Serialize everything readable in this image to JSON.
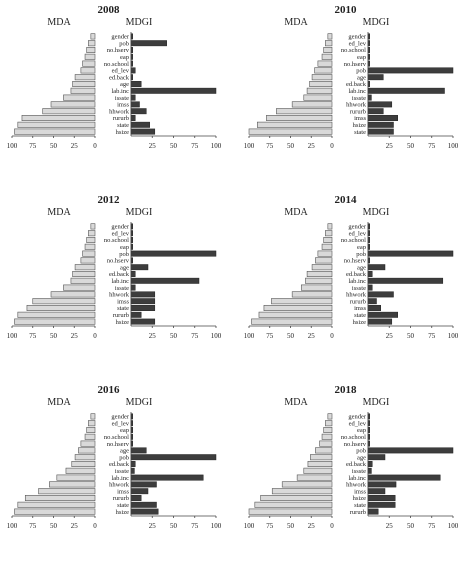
{
  "chart_data": [
    {
      "type": "bar",
      "title": "2008",
      "left_label": "MDA",
      "right_label": "MDGI",
      "categories": [
        "gender",
        "pob",
        "no.hserv",
        "eap",
        "no.school",
        "ed_lev",
        "ed.back",
        "age",
        "lab.inc",
        "issste",
        "imss",
        "hhwork",
        "rururb",
        "state",
        "hsize"
      ],
      "series": [
        {
          "name": "MDA",
          "values": [
            5,
            8,
            10,
            12,
            15,
            17,
            24,
            27,
            29,
            38,
            53,
            63,
            88,
            93,
            97
          ]
        },
        {
          "name": "MDGI",
          "values": [
            2,
            42,
            2,
            2,
            2,
            5,
            2,
            12,
            100,
            5,
            10,
            18,
            5,
            22,
            28
          ]
        }
      ],
      "xlim": [
        0,
        100
      ],
      "ticks": [
        100,
        75,
        50,
        25,
        0,
        25,
        50,
        75,
        100
      ]
    },
    {
      "type": "bar",
      "title": "2010",
      "left_label": "MDA",
      "right_label": "MDGI",
      "categories": [
        "gender",
        "ed_lev",
        "no.school",
        "eap",
        "no.hserv",
        "pob",
        "age",
        "ed.back",
        "lab.inc",
        "issste",
        "hhwork",
        "rururb",
        "imss",
        "hsize",
        "state"
      ],
      "series": [
        {
          "name": "MDA",
          "values": [
            5,
            8,
            10,
            12,
            17,
            21,
            24,
            27,
            30,
            34,
            48,
            67,
            79,
            90,
            100
          ]
        },
        {
          "name": "MDGI",
          "values": [
            2,
            2,
            2,
            2,
            2,
            100,
            18,
            2,
            90,
            4,
            28,
            18,
            35,
            30,
            30
          ]
        }
      ],
      "xlim": [
        0,
        100
      ],
      "ticks": [
        100,
        75,
        50,
        25,
        0,
        25,
        50,
        75,
        100
      ]
    },
    {
      "type": "bar",
      "title": "2012",
      "left_label": "MDA",
      "right_label": "MDGI",
      "categories": [
        "gender",
        "ed_lev",
        "no.school",
        "eap",
        "pob",
        "no.hserv",
        "age",
        "ed.back",
        "lab.inc",
        "issste",
        "hhwork",
        "imss",
        "state",
        "rururb",
        "hsize"
      ],
      "series": [
        {
          "name": "MDA",
          "values": [
            5,
            8,
            10,
            12,
            15,
            17,
            24,
            27,
            29,
            38,
            53,
            75,
            82,
            93,
            97
          ]
        },
        {
          "name": "MDGI",
          "values": [
            2,
            2,
            2,
            2,
            100,
            2,
            20,
            5,
            80,
            5,
            28,
            28,
            28,
            12,
            28
          ]
        }
      ],
      "xlim": [
        0,
        100
      ],
      "ticks": [
        100,
        75,
        50,
        25,
        0,
        25,
        50,
        75,
        100
      ]
    },
    {
      "type": "bar",
      "title": "2014",
      "left_label": "MDA",
      "right_label": "MDGI",
      "categories": [
        "gender",
        "ed_lev",
        "no.school",
        "eap",
        "pob",
        "no.hserv",
        "age",
        "ed.back",
        "lab.inc",
        "issste",
        "hhwork",
        "rururb",
        "imss",
        "state",
        "hsize"
      ],
      "series": [
        {
          "name": "MDA",
          "values": [
            5,
            8,
            10,
            12,
            17,
            20,
            24,
            30,
            32,
            37,
            48,
            73,
            82,
            88,
            97
          ]
        },
        {
          "name": "MDGI",
          "values": [
            2,
            2,
            2,
            2,
            100,
            2,
            20,
            5,
            88,
            5,
            30,
            10,
            15,
            35,
            28
          ]
        }
      ],
      "xlim": [
        0,
        100
      ],
      "ticks": [
        100,
        75,
        50,
        25,
        0,
        25,
        50,
        75,
        100
      ]
    },
    {
      "type": "bar",
      "title": "2016",
      "left_label": "MDA",
      "right_label": "MDGI",
      "categories": [
        "gender",
        "ed_lev",
        "eap",
        "no.school",
        "no.hserv",
        "age",
        "pob",
        "ed.back",
        "issste",
        "lab.inc",
        "hhwork",
        "imss",
        "rururb",
        "state",
        "hsize"
      ],
      "series": [
        {
          "name": "MDA",
          "values": [
            5,
            8,
            10,
            12,
            17,
            20,
            24,
            28,
            35,
            46,
            55,
            68,
            84,
            93,
            97
          ]
        },
        {
          "name": "MDGI",
          "values": [
            2,
            2,
            2,
            2,
            2,
            18,
            100,
            5,
            4,
            85,
            30,
            20,
            12,
            30,
            32
          ]
        }
      ],
      "xlim": [
        0,
        100
      ],
      "ticks": [
        100,
        75,
        50,
        25,
        0,
        25,
        50,
        75,
        100
      ]
    },
    {
      "type": "bar",
      "title": "2018",
      "left_label": "MDA",
      "right_label": "MDGI",
      "categories": [
        "gender",
        "ed_lev",
        "eap",
        "no.school",
        "no.hserv",
        "pob",
        "age",
        "ed.back",
        "issste",
        "lab.inc",
        "hhwork",
        "imss",
        "hsize",
        "state",
        "rururb"
      ],
      "series": [
        {
          "name": "MDA",
          "values": [
            5,
            8,
            10,
            12,
            15,
            20,
            26,
            29,
            34,
            42,
            60,
            72,
            86,
            93,
            100
          ]
        },
        {
          "name": "MDGI",
          "values": [
            2,
            2,
            2,
            2,
            2,
            100,
            20,
            5,
            4,
            85,
            33,
            20,
            32,
            32,
            12
          ]
        }
      ],
      "xlim": [
        0,
        100
      ],
      "ticks": [
        100,
        75,
        50,
        25,
        0,
        25,
        50,
        75,
        100
      ]
    }
  ]
}
